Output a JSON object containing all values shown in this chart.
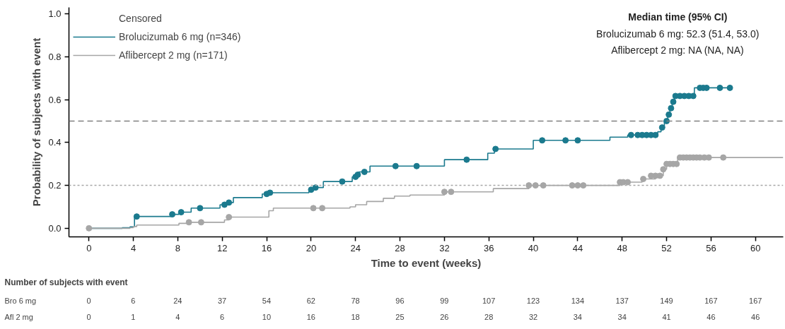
{
  "chart_data": [
    {
      "type": "step",
      "xlabel": "Time to event (weeks)",
      "ylabel": "Probability of subjects with event",
      "xlim": [
        -1.8,
        62.5
      ],
      "xticks": [
        0,
        4,
        8,
        12,
        16,
        20,
        24,
        28,
        32,
        36,
        40,
        44,
        48,
        52,
        56,
        60
      ],
      "ylim": [
        -0.04,
        1.03
      ],
      "yticks": [
        {
          "value": 0,
          "label": "0.0"
        },
        {
          "value": 0.2,
          "label": "0.2"
        },
        {
          "value": 0.4,
          "label": "0.4"
        },
        {
          "value": 0.6,
          "label": "0.6"
        },
        {
          "value": 0.8,
          "label": "0.8"
        },
        {
          "value": 1,
          "label": "1.0"
        }
      ],
      "grid": false,
      "legend": "top left",
      "series": [
        {
          "name": "Brolucizumab 6 mg (n=346)",
          "type": "step",
          "color": "#1b7a8e",
          "x": [
            0,
            3.0,
            3.7,
            4.1,
            7.4,
            8.1,
            9.2,
            11.8,
            12.2,
            13.0,
            15.6,
            16.2,
            19.8,
            20.3,
            21.1,
            23.7,
            24.3,
            25.3,
            32.0,
            35.9,
            36.5,
            40.0,
            46.9,
            48.5,
            51.2,
            51.5,
            51.8,
            52.1,
            52.3,
            52.5,
            52.7,
            54.5,
            57.8
          ],
          "values": [
            0,
            0.003,
            0.007,
            0.055,
            0.065,
            0.075,
            0.094,
            0.11,
            0.12,
            0.143,
            0.16,
            0.166,
            0.18,
            0.19,
            0.218,
            0.24,
            0.263,
            0.29,
            0.32,
            0.35,
            0.37,
            0.41,
            0.425,
            0.435,
            0.45,
            0.47,
            0.5,
            0.53,
            0.56,
            0.59,
            0.617,
            0.655,
            0.655
          ]
        },
        {
          "type": "scatter",
          "marker": "circle",
          "color": "#1b7a8e",
          "x": [
            4.3,
            7.5,
            8.3,
            10.0,
            12.2,
            12.6,
            16.0,
            16.3,
            20.0,
            20.4,
            22.8,
            24.0,
            24.2,
            24.8,
            27.6,
            29.5,
            34.0,
            36.6,
            40.8,
            42.9,
            44.0,
            48.8,
            49.4,
            49.8,
            50.2,
            50.6,
            51.0,
            51.6,
            52.0,
            52.2,
            52.4,
            52.6,
            52.8,
            53.2,
            53.6,
            54.0,
            54.4,
            55.0,
            55.3,
            55.6,
            56.8,
            57.7
          ],
          "values": [
            0.055,
            0.065,
            0.075,
            0.094,
            0.11,
            0.12,
            0.16,
            0.166,
            0.18,
            0.19,
            0.218,
            0.24,
            0.25,
            0.263,
            0.29,
            0.29,
            0.32,
            0.37,
            0.41,
            0.41,
            0.41,
            0.435,
            0.435,
            0.435,
            0.435,
            0.435,
            0.435,
            0.47,
            0.5,
            0.53,
            0.56,
            0.59,
            0.617,
            0.617,
            0.617,
            0.617,
            0.617,
            0.655,
            0.655,
            0.655,
            0.655,
            0.655
          ]
        },
        {
          "name": "Aflibercept 2 mg (n=171)",
          "type": "step",
          "color": "#a6a6a6",
          "x": [
            0,
            3.7,
            4.0,
            4.3,
            8.1,
            9.0,
            12.2,
            12.6,
            16.2,
            16.6,
            23.5,
            24.0,
            25.0,
            26.5,
            27.5,
            28.9,
            32.0,
            36.4,
            39.6,
            47.8,
            49.8,
            51.0,
            51.7,
            52.0,
            53.0,
            62.5
          ],
          "values": [
            0,
            0.003,
            0.008,
            0.015,
            0.023,
            0.028,
            0.039,
            0.052,
            0.082,
            0.094,
            0.1,
            0.11,
            0.125,
            0.14,
            0.15,
            0.155,
            0.17,
            0.185,
            0.2,
            0.215,
            0.23,
            0.245,
            0.275,
            0.3,
            0.33,
            0.33
          ]
        },
        {
          "type": "scatter",
          "marker": "circle",
          "color": "#a6a6a6",
          "x": [
            0,
            9.0,
            10.1,
            12.6,
            20.2,
            21.0,
            32.0,
            32.6,
            39.6,
            40.2,
            40.9,
            43.5,
            44.0,
            44.5,
            47.8,
            48.1,
            48.5,
            49.9,
            50.6,
            51.0,
            51.4,
            51.7,
            52.0,
            52.3,
            52.6,
            52.9,
            53.2,
            53.5,
            53.8,
            54.1,
            54.4,
            54.7,
            55.0,
            55.4,
            55.8,
            57.1
          ],
          "values": [
            0,
            0.028,
            0.028,
            0.052,
            0.094,
            0.094,
            0.17,
            0.17,
            0.2,
            0.2,
            0.2,
            0.2,
            0.2,
            0.2,
            0.215,
            0.215,
            0.215,
            0.23,
            0.245,
            0.245,
            0.245,
            0.275,
            0.3,
            0.3,
            0.3,
            0.3,
            0.33,
            0.33,
            0.33,
            0.33,
            0.33,
            0.33,
            0.33,
            0.33,
            0.33,
            0.33
          ]
        }
      ],
      "ref_lines": [
        {
          "axis": "y",
          "value": 0.5,
          "color": "#7f7f7f",
          "line_style": "dashed"
        },
        {
          "axis": "y",
          "value": 0.2,
          "color": "#a6a6a6",
          "line_style": "dotted"
        }
      ],
      "annotations": [
        "Censored",
        "Median time (95% CI)",
        "Brolucizumab 6 mg: 52.3 (51.4, 53.0)",
        "Aflibercept 2 mg: NA (NA, NA)"
      ]
    },
    {
      "type": "heatmap",
      "title": "Number of subjects with event",
      "categories": [
        null,
        null,
        null,
        null,
        null,
        null,
        null,
        null,
        null,
        null,
        null,
        null,
        null,
        null,
        null,
        null
      ],
      "data_labels": true,
      "y_categories": [
        "Bro 6 mg",
        "Afl 2 mg"
      ],
      "cells": [
        [
          0,
          6,
          24,
          37,
          54,
          62,
          78,
          96,
          99,
          107,
          123,
          134,
          137,
          149,
          167,
          167
        ],
        [
          0,
          1,
          4,
          6,
          10,
          16,
          18,
          25,
          26,
          28,
          32,
          34,
          34,
          41,
          46,
          46
        ]
      ]
    }
  ]
}
